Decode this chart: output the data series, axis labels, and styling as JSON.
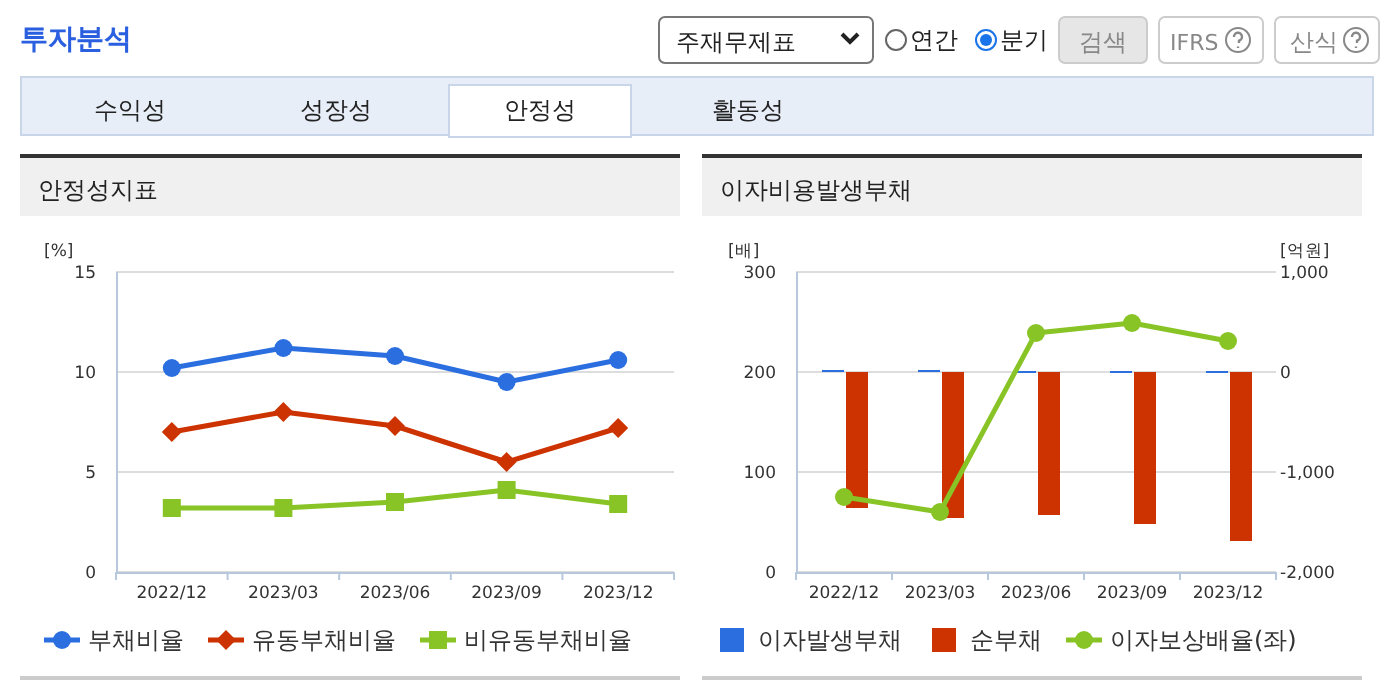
{
  "chart_data": [
    {
      "type": "other",
      "title": "투자분석",
      "annotations": [
        "주재무제표",
        "연간",
        "분기",
        "검색",
        "IFRS",
        "산식",
        "수익성",
        "성장성",
        "안정성",
        "활동성"
      ]
    },
    {
      "type": "line",
      "title": "안정성지표",
      "ylabel": "[%]",
      "categories": [
        "2022/12",
        "2023/03",
        "2023/06",
        "2023/09",
        "2023/12"
      ],
      "ylim": [
        0,
        15
      ],
      "yticks": [
        0,
        5,
        10,
        15
      ],
      "grid": "y",
      "legend": "bottom",
      "line_style": "solid",
      "series": [
        {
          "name": "부채비율",
          "color": "#2a6ee0",
          "marker": "circle",
          "values": [
            10.2,
            11.2,
            10.8,
            9.5,
            10.6
          ]
        },
        {
          "name": "유동부채비율",
          "color": "#cc3300",
          "marker": "diamond",
          "values": [
            7,
            8,
            7.3,
            5.5,
            7.2
          ]
        },
        {
          "name": "비유동부채비율",
          "color": "#88c425",
          "marker": "square",
          "values": [
            3.2,
            3.2,
            3.5,
            4.1,
            3.4
          ]
        }
      ]
    },
    {
      "type": "bar",
      "title": "이자비용발생부채",
      "ylabel": "[배]",
      "y2label": "[억원]",
      "categories": [
        "2022/12",
        "2023/03",
        "2023/06",
        "2023/09",
        "2023/12"
      ],
      "ylim": [
        0,
        300
      ],
      "yticks": [
        0,
        100,
        200,
        300
      ],
      "y2lim": [
        -2000,
        1000
      ],
      "y2ticks": [
        {
          "value": -2000,
          "label": "-2,000"
        },
        {
          "value": -1000,
          "label": "-1,000"
        },
        0,
        {
          "value": 1000,
          "label": "1,000"
        }
      ],
      "grid": "y",
      "legend": "bottom",
      "series": [
        {
          "name": "이자발생부채",
          "color": "#2a6ee0",
          "type": "bar",
          "axis": "y2",
          "values": [
            20,
            20,
            10,
            10,
            10
          ]
        },
        {
          "name": "순부채",
          "color": "#cc3300",
          "type": "bar",
          "axis": "y2",
          "values": [
            -1360,
            -1460,
            -1430,
            -1520,
            -1690
          ]
        },
        {
          "name": "이자보상배율(좌)",
          "color": "#88c425",
          "type": "line",
          "axis": "y",
          "marker": "circle",
          "values": [
            75,
            60,
            239,
            249,
            231
          ]
        }
      ]
    }
  ]
}
